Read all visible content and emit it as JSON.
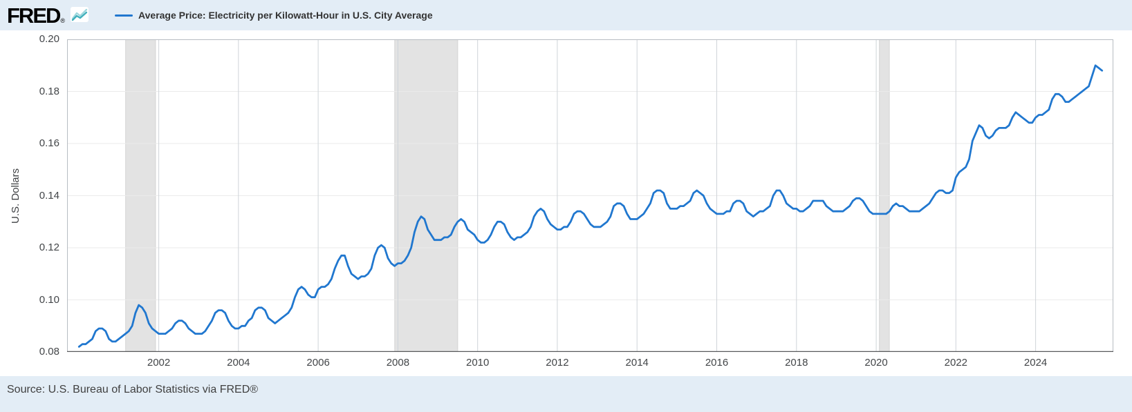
{
  "header": {
    "logo_text": "FRED",
    "logo_registered": "®",
    "legend": {
      "label": "Average Price: Electricity per Kilowatt-Hour in U.S. City Average",
      "line_color": "#2077cf"
    }
  },
  "footer": {
    "source": "Source: U.S. Bureau of Labor Statistics via FRED®"
  },
  "chart_data": {
    "type": "line",
    "title": "Average Price: Electricity per Kilowatt-Hour in U.S. City Average",
    "ylabel": "U.S. Dollars",
    "series_color": "#2077cf",
    "frequency": "monthly",
    "x_start": 2000,
    "xlim": [
      1999.7,
      2025.95
    ],
    "ylim": [
      0.08,
      0.2
    ],
    "y_ticks": [
      0.08,
      0.1,
      0.12,
      0.14,
      0.16,
      0.18,
      0.2
    ],
    "x_ticks": [
      2002,
      2004,
      2006,
      2008,
      2010,
      2012,
      2014,
      2016,
      2018,
      2020,
      2022,
      2024
    ],
    "recession_bands": [
      [
        2001.17,
        2001.92
      ],
      [
        2007.92,
        2009.5
      ],
      [
        2020.08,
        2020.33
      ]
    ],
    "legend_position": "top-left",
    "grid": true,
    "colors": {
      "recession": "#e3e3e3",
      "recession_edge": "#d4d4d4",
      "grid_h": "#ebebeb",
      "grid_v": "#cfd4d9",
      "border": "#b7bcc2",
      "axis": "#58595b"
    },
    "values": [
      0.082,
      0.083,
      0.083,
      0.084,
      0.085,
      0.088,
      0.089,
      0.089,
      0.088,
      0.085,
      0.084,
      0.084,
      0.085,
      0.086,
      0.087,
      0.088,
      0.09,
      0.095,
      0.098,
      0.097,
      0.095,
      0.091,
      0.089,
      0.088,
      0.087,
      0.087,
      0.087,
      0.088,
      0.089,
      0.091,
      0.092,
      0.092,
      0.091,
      0.089,
      0.088,
      0.087,
      0.087,
      0.087,
      0.088,
      0.09,
      0.092,
      0.095,
      0.096,
      0.096,
      0.095,
      0.092,
      0.09,
      0.089,
      0.089,
      0.09,
      0.09,
      0.092,
      0.093,
      0.096,
      0.097,
      0.097,
      0.096,
      0.093,
      0.092,
      0.091,
      0.092,
      0.093,
      0.094,
      0.095,
      0.097,
      0.101,
      0.104,
      0.105,
      0.104,
      0.102,
      0.101,
      0.101,
      0.104,
      0.105,
      0.105,
      0.106,
      0.108,
      0.112,
      0.115,
      0.117,
      0.117,
      0.113,
      0.11,
      0.109,
      0.108,
      0.109,
      0.109,
      0.11,
      0.112,
      0.117,
      0.12,
      0.121,
      0.12,
      0.116,
      0.114,
      0.113,
      0.114,
      0.114,
      0.115,
      0.117,
      0.12,
      0.126,
      0.13,
      0.132,
      0.131,
      0.127,
      0.125,
      0.123,
      0.123,
      0.123,
      0.124,
      0.124,
      0.125,
      0.128,
      0.13,
      0.131,
      0.13,
      0.127,
      0.126,
      0.125,
      0.123,
      0.122,
      0.122,
      0.123,
      0.125,
      0.128,
      0.13,
      0.13,
      0.129,
      0.126,
      0.124,
      0.123,
      0.124,
      0.124,
      0.125,
      0.126,
      0.128,
      0.132,
      0.134,
      0.135,
      0.134,
      0.131,
      0.129,
      0.128,
      0.127,
      0.127,
      0.128,
      0.128,
      0.13,
      0.133,
      0.134,
      0.134,
      0.133,
      0.131,
      0.129,
      0.128,
      0.128,
      0.128,
      0.129,
      0.13,
      0.132,
      0.136,
      0.137,
      0.137,
      0.136,
      0.133,
      0.131,
      0.131,
      0.131,
      0.132,
      0.133,
      0.135,
      0.137,
      0.141,
      0.142,
      0.142,
      0.141,
      0.137,
      0.135,
      0.135,
      0.135,
      0.136,
      0.136,
      0.137,
      0.138,
      0.141,
      0.142,
      0.141,
      0.14,
      0.137,
      0.135,
      0.134,
      0.133,
      0.133,
      0.133,
      0.134,
      0.134,
      0.137,
      0.138,
      0.138,
      0.137,
      0.134,
      0.133,
      0.132,
      0.133,
      0.134,
      0.134,
      0.135,
      0.136,
      0.14,
      0.142,
      0.142,
      0.14,
      0.137,
      0.136,
      0.135,
      0.135,
      0.134,
      0.134,
      0.135,
      0.136,
      0.138,
      0.138,
      0.138,
      0.138,
      0.136,
      0.135,
      0.134,
      0.134,
      0.134,
      0.134,
      0.135,
      0.136,
      0.138,
      0.139,
      0.139,
      0.138,
      0.136,
      0.134,
      0.133,
      0.133,
      0.133,
      0.133,
      0.133,
      0.134,
      0.136,
      0.137,
      0.136,
      0.136,
      0.135,
      0.134,
      0.134,
      0.134,
      0.134,
      0.135,
      0.136,
      0.137,
      0.139,
      0.141,
      0.142,
      0.142,
      0.141,
      0.141,
      0.142,
      0.147,
      0.149,
      0.15,
      0.151,
      0.154,
      0.161,
      0.164,
      0.167,
      0.166,
      0.163,
      0.162,
      0.163,
      0.165,
      0.166,
      0.166,
      0.166,
      0.167,
      0.17,
      0.172,
      0.171,
      0.17,
      0.169,
      0.168,
      0.168,
      0.17,
      0.171,
      0.171,
      0.172,
      0.173,
      0.177,
      0.179,
      0.179,
      0.178,
      0.176,
      0.176,
      0.177,
      0.178,
      0.179,
      0.18,
      0.181,
      0.182,
      0.186,
      0.19,
      0.189,
      0.188
    ]
  }
}
